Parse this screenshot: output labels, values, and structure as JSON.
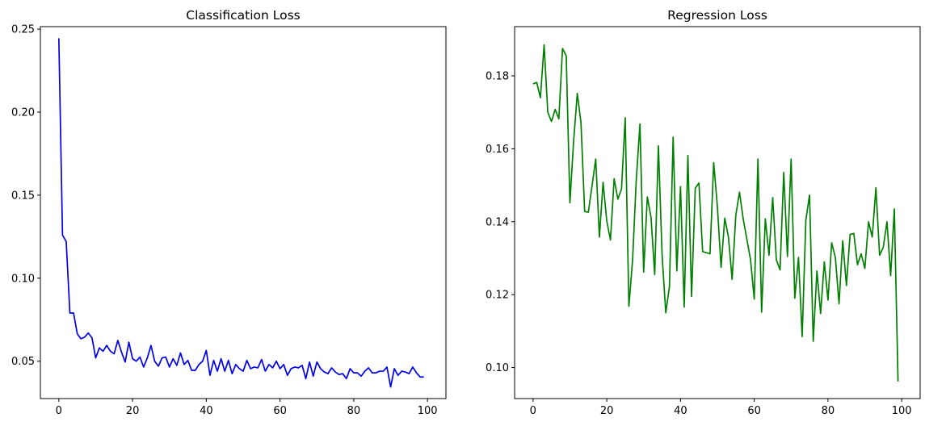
{
  "chart_data": [
    {
      "type": "line",
      "title": "Classification Loss",
      "xlabel": "",
      "ylabel": "",
      "xlim": [
        -5,
        105
      ],
      "ylim": [
        0.0275,
        0.2515
      ],
      "xticks": [
        0,
        20,
        40,
        60,
        80,
        100
      ],
      "yticks": [
        0.05,
        0.1,
        0.15,
        0.2,
        0.25
      ],
      "grid": false,
      "color": "#0000ee",
      "series": [
        {
          "x": [
            0,
            1,
            2,
            3,
            4,
            5,
            6,
            7,
            8,
            9,
            10,
            11,
            12,
            13,
            14,
            15,
            16,
            17,
            18,
            19,
            20,
            21,
            22,
            23,
            24,
            25,
            26,
            27,
            28,
            29,
            30,
            31,
            32,
            33,
            34,
            35,
            36,
            37,
            38,
            39,
            40,
            41,
            42,
            43,
            44,
            45,
            46,
            47,
            48,
            49,
            50,
            51,
            52,
            53,
            54,
            55,
            56,
            57,
            58,
            59,
            60,
            61,
            62,
            63,
            64,
            65,
            66,
            67,
            68,
            69,
            70,
            71,
            72,
            73,
            74,
            75,
            76,
            77,
            78,
            79,
            80,
            81,
            82,
            83,
            84,
            85,
            86,
            87,
            88,
            89,
            90,
            91,
            92,
            93,
            94,
            95,
            96,
            97,
            98,
            99
          ],
          "values": [
            0.2445,
            0.126,
            0.122,
            0.079,
            0.079,
            0.0665,
            0.0635,
            0.0645,
            0.067,
            0.064,
            0.052,
            0.058,
            0.056,
            0.0595,
            0.056,
            0.0545,
            0.0625,
            0.0555,
            0.0495,
            0.0615,
            0.0515,
            0.05,
            0.0525,
            0.0465,
            0.052,
            0.0595,
            0.05,
            0.047,
            0.052,
            0.0525,
            0.0465,
            0.0515,
            0.0475,
            0.055,
            0.048,
            0.0505,
            0.0445,
            0.0445,
            0.048,
            0.05,
            0.0565,
            0.0415,
            0.0505,
            0.044,
            0.0515,
            0.044,
            0.0505,
            0.0425,
            0.048,
            0.0455,
            0.044,
            0.0505,
            0.0455,
            0.0465,
            0.046,
            0.051,
            0.044,
            0.048,
            0.046,
            0.05,
            0.0455,
            0.048,
            0.0415,
            0.0455,
            0.0465,
            0.046,
            0.0475,
            0.0395,
            0.0495,
            0.041,
            0.0495,
            0.0455,
            0.0435,
            0.0425,
            0.046,
            0.0435,
            0.042,
            0.0425,
            0.0395,
            0.0455,
            0.043,
            0.043,
            0.041,
            0.044,
            0.046,
            0.043,
            0.043,
            0.044,
            0.044,
            0.0465,
            0.0345,
            0.0455,
            0.0415,
            0.044,
            0.0435,
            0.0425,
            0.0465,
            0.043,
            0.0405,
            0.0405
          ]
        }
      ]
    },
    {
      "type": "line",
      "title": "Regression Loss",
      "xlabel": "",
      "ylabel": "",
      "xlim": [
        -5,
        105
      ],
      "ylim": [
        0.0915,
        0.1935
      ],
      "xticks": [
        0,
        20,
        40,
        60,
        80,
        100
      ],
      "yticks": [
        0.1,
        0.12,
        0.14,
        0.16,
        0.18
      ],
      "grid": false,
      "color": "#008000",
      "series": [
        {
          "x": [
            0,
            1,
            2,
            3,
            4,
            5,
            6,
            7,
            8,
            9,
            10,
            11,
            12,
            13,
            14,
            15,
            16,
            17,
            18,
            19,
            20,
            21,
            22,
            23,
            24,
            25,
            26,
            27,
            28,
            29,
            30,
            31,
            32,
            33,
            34,
            35,
            36,
            37,
            38,
            39,
            40,
            41,
            42,
            43,
            44,
            45,
            46,
            47,
            48,
            49,
            50,
            51,
            52,
            53,
            54,
            55,
            56,
            57,
            58,
            59,
            60,
            61,
            62,
            63,
            64,
            65,
            66,
            67,
            68,
            69,
            70,
            71,
            72,
            73,
            74,
            75,
            76,
            77,
            78,
            79,
            80,
            81,
            82,
            83,
            84,
            85,
            86,
            87,
            88,
            89,
            90,
            91,
            92,
            93,
            94,
            95,
            96,
            97,
            98,
            99
          ],
          "values": [
            0.1778,
            0.1782,
            0.174,
            0.1885,
            0.17,
            0.1675,
            0.1708,
            0.1682,
            0.1875,
            0.1855,
            0.1452,
            0.162,
            0.1752,
            0.1672,
            0.1428,
            0.1426,
            0.1498,
            0.1572,
            0.1358,
            0.1508,
            0.1402,
            0.135,
            0.1518,
            0.1462,
            0.149,
            0.1685,
            0.1168,
            0.1295,
            0.1515,
            0.1668,
            0.1262,
            0.1468,
            0.1412,
            0.1255,
            0.1608,
            0.131,
            0.115,
            0.1222,
            0.1632,
            0.1265,
            0.1496,
            0.1166,
            0.1582,
            0.1195,
            0.1492,
            0.1506,
            0.1318,
            0.1315,
            0.1312,
            0.1562,
            0.1442,
            0.1275,
            0.141,
            0.1358,
            0.1242,
            0.1418,
            0.1481,
            0.1408,
            0.1352,
            0.1295,
            0.1188,
            0.1572,
            0.1152,
            0.1408,
            0.1308,
            0.1466,
            0.1295,
            0.1268,
            0.1535,
            0.1305,
            0.1572,
            0.119,
            0.1302,
            0.1085,
            0.1405,
            0.1473,
            0.1072,
            0.1265,
            0.1148,
            0.129,
            0.1185,
            0.1342,
            0.1302,
            0.1175,
            0.1348,
            0.1225,
            0.1365,
            0.1368,
            0.1282,
            0.1312,
            0.1272,
            0.14,
            0.1358,
            0.1493,
            0.1308,
            0.133,
            0.14,
            0.1252,
            0.1435,
            0.0962
          ]
        }
      ]
    }
  ]
}
